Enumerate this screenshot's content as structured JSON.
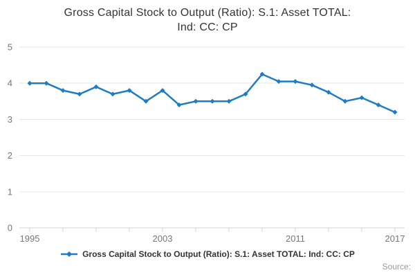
{
  "title_lines": [
    "Gross Capital Stock to Output (Ratio): S.1: Asset TOTAL:",
    "Ind: CC: CP"
  ],
  "legend": {
    "label": "Gross Capital Stock to Output (Ratio): S.1: Asset TOTAL: Ind: CC: CP"
  },
  "source": {
    "label": "Source:"
  },
  "chart_data": {
    "type": "line",
    "title": "Gross Capital Stock to Output (Ratio): S.1: Asset TOTAL: Ind: CC: CP",
    "x": [
      1995,
      1996,
      1997,
      1998,
      1999,
      2000,
      2001,
      2002,
      2003,
      2004,
      2005,
      2006,
      2007,
      2008,
      2009,
      2010,
      2011,
      2012,
      2013,
      2014,
      2015,
      2016,
      2017
    ],
    "series": [
      {
        "name": "Gross Capital Stock to Output (Ratio): S.1: Asset TOTAL: Ind: CC: CP",
        "values": [
          4.0,
          4.0,
          3.8,
          3.7,
          3.9,
          3.7,
          3.8,
          3.5,
          3.8,
          3.4,
          3.5,
          3.5,
          3.5,
          3.7,
          4.25,
          4.05,
          4.05,
          3.95,
          3.75,
          3.5,
          3.6,
          3.4,
          3.2
        ]
      }
    ],
    "xlabel": "",
    "ylabel": "",
    "ylim": [
      0,
      5
    ],
    "yticks": [
      0,
      1,
      2,
      3,
      4,
      5
    ],
    "xtick_step_years": 2,
    "xtick_labels_shown": [
      1995,
      2003,
      2011,
      2017
    ],
    "grid": "horizontal",
    "legend_position": "bottom",
    "marker": "diamond",
    "colors": {
      "line": "#1d7cc4",
      "grid": "#e6e6e6",
      "axis": "#ccd6eb",
      "tick_label": "#777777",
      "title_text": "#333333",
      "legend_text": "#333333",
      "source_text": "#999999"
    }
  }
}
